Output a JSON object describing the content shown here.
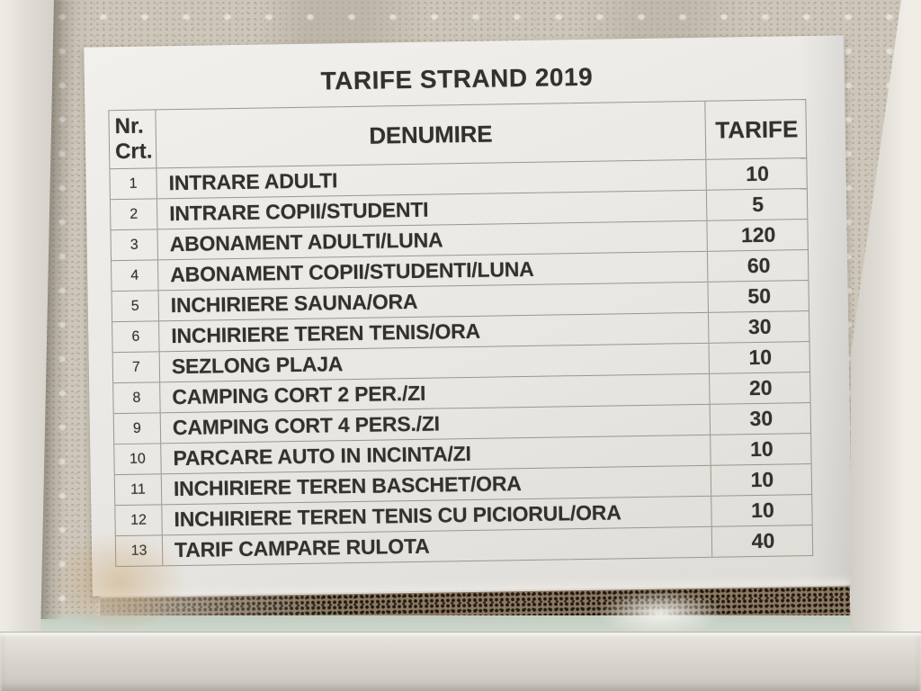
{
  "title": "TARIFE STRAND 2019",
  "table": {
    "header": {
      "nr_line1": "Nr.",
      "nr_line2": "Crt.",
      "denumire": "DENUMIRE",
      "tarife": "TARIFE"
    },
    "rows": [
      {
        "nr": "1",
        "denumire": "INTRARE ADULTI",
        "tarif": "10"
      },
      {
        "nr": "2",
        "denumire": "INTRARE COPII/STUDENTI",
        "tarif": "5"
      },
      {
        "nr": "3",
        "denumire": "ABONAMENT ADULTI/LUNA",
        "tarif": "120"
      },
      {
        "nr": "4",
        "denumire": "ABONAMENT COPII/STUDENTI/LUNA",
        "tarif": "60"
      },
      {
        "nr": "5",
        "denumire": "INCHIRIERE SAUNA/ORA",
        "tarif": "50"
      },
      {
        "nr": "6",
        "denumire": "INCHIRIERE TEREN TENIS/ORA",
        "tarif": "30"
      },
      {
        "nr": "7",
        "denumire": "SEZLONG PLAJA",
        "tarif": "10"
      },
      {
        "nr": "8",
        "denumire": "CAMPING CORT 2 PER./ZI",
        "tarif": "20"
      },
      {
        "nr": "9",
        "denumire": "CAMPING CORT 4 PERS./ZI",
        "tarif": "30"
      },
      {
        "nr": "10",
        "denumire": "PARCARE AUTO IN INCINTA/ZI",
        "tarif": "10"
      },
      {
        "nr": "11",
        "denumire": "INCHIRIERE TEREN BASCHET/ORA",
        "tarif": "10"
      },
      {
        "nr": "12",
        "denumire": "INCHIRIERE TEREN TENIS CU PICIORUL/ORA",
        "tarif": "10"
      },
      {
        "nr": "13",
        "denumire": "TARIF CAMPARE RULOTA",
        "tarif": "40"
      }
    ]
  },
  "colors": {
    "paper": "#ece9e5",
    "ink": "#33312e",
    "line": "#9a968e",
    "frame": "#e0ddd6",
    "curtain": "#cdc6ba",
    "lace": "#8b7962",
    "putty": "#c9d1c6",
    "sill": "#d9d6cf"
  }
}
